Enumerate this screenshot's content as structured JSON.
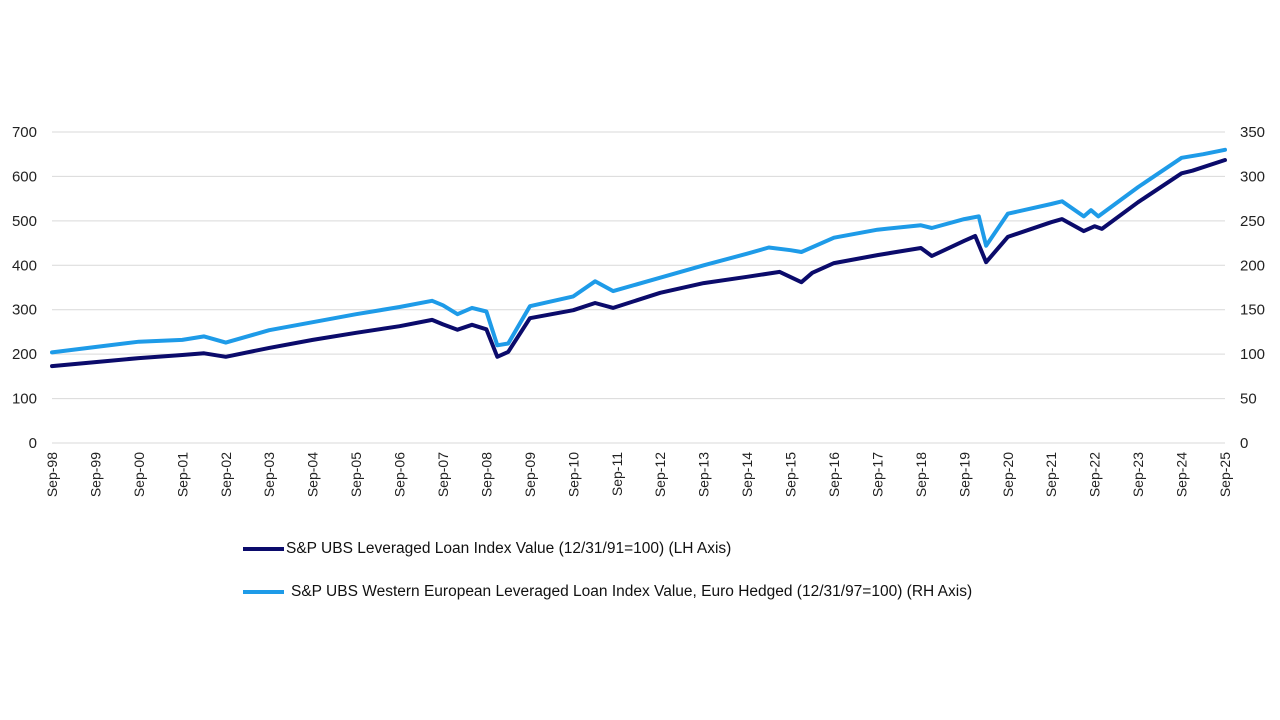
{
  "chart_data": {
    "type": "line",
    "title": "",
    "xlabel": "",
    "ylabel": "",
    "y2label": "",
    "grid": true,
    "legend_position": "bottom",
    "ylim": [
      0,
      700
    ],
    "y2lim": [
      0,
      350
    ],
    "yticks": [
      "0",
      "100",
      "200",
      "300",
      "400",
      "500",
      "600",
      "700"
    ],
    "y2ticks": [
      "0",
      "50",
      "100",
      "150",
      "200",
      "250",
      "300",
      "350"
    ],
    "xticks": [
      "Sep-98",
      "Sep-99",
      "Sep-00",
      "Sep-01",
      "Sep-02",
      "Sep-03",
      "Sep-04",
      "Sep-05",
      "Sep-06",
      "Sep-07",
      "Sep-08",
      "Sep-09",
      "Sep-10",
      "Sep-11",
      "Sep-12",
      "Sep-13",
      "Sep-14",
      "Sep-15",
      "Sep-16",
      "Sep-17",
      "Sep-18",
      "Sep-19",
      "Sep-20",
      "Sep-21",
      "Sep-22",
      "Sep-23",
      "Sep-24",
      "Sep-25"
    ],
    "xrange": [
      "1998-09",
      "2025-09"
    ],
    "series": [
      {
        "name": "S&P UBS Leveraged Loan Index Value (12/31/91=100) (LH Axis)",
        "axis": "left",
        "color": "#0b0b6b",
        "points": [
          [
            "1998-09",
            173
          ],
          [
            "1999-09",
            182
          ],
          [
            "2000-09",
            191
          ],
          [
            "2001-09",
            198
          ],
          [
            "2002-03",
            202
          ],
          [
            "2002-09",
            194
          ],
          [
            "2003-09",
            214
          ],
          [
            "2004-09",
            232
          ],
          [
            "2005-09",
            248
          ],
          [
            "2006-09",
            263
          ],
          [
            "2007-06",
            277
          ],
          [
            "2007-09",
            267
          ],
          [
            "2008-01",
            255
          ],
          [
            "2008-05",
            266
          ],
          [
            "2008-09",
            256
          ],
          [
            "2008-12",
            194
          ],
          [
            "2009-03",
            205
          ],
          [
            "2009-09",
            281
          ],
          [
            "2010-09",
            299
          ],
          [
            "2011-03",
            315
          ],
          [
            "2011-08",
            304
          ],
          [
            "2012-09",
            338
          ],
          [
            "2013-09",
            360
          ],
          [
            "2014-09",
            374
          ],
          [
            "2015-06",
            385
          ],
          [
            "2015-12",
            362
          ],
          [
            "2016-03",
            383
          ],
          [
            "2016-09",
            405
          ],
          [
            "2017-09",
            423
          ],
          [
            "2018-09",
            439
          ],
          [
            "2018-12",
            421
          ],
          [
            "2019-09",
            455
          ],
          [
            "2019-12",
            466
          ],
          [
            "2020-03",
            407
          ],
          [
            "2020-09",
            464
          ],
          [
            "2021-09",
            497
          ],
          [
            "2021-12",
            504
          ],
          [
            "2022-06",
            477
          ],
          [
            "2022-09",
            488
          ],
          [
            "2022-11",
            482
          ],
          [
            "2023-09",
            542
          ],
          [
            "2024-09",
            607
          ],
          [
            "2024-12",
            613
          ],
          [
            "2025-09",
            637
          ]
        ]
      },
      {
        "name": "S&P UBS Western European Leveraged Loan Index Value, Euro Hedged (12/31/97=100) (RH Axis)",
        "axis": "right",
        "color": "#1e9be8",
        "points": [
          [
            "1998-09",
            102
          ],
          [
            "1999-09",
            108
          ],
          [
            "2000-09",
            114
          ],
          [
            "2001-09",
            116
          ],
          [
            "2002-03",
            120
          ],
          [
            "2002-09",
            113
          ],
          [
            "2003-09",
            127
          ],
          [
            "2004-09",
            136
          ],
          [
            "2005-09",
            145
          ],
          [
            "2006-09",
            153
          ],
          [
            "2007-06",
            160
          ],
          [
            "2007-09",
            155
          ],
          [
            "2008-01",
            145
          ],
          [
            "2008-05",
            152
          ],
          [
            "2008-09",
            148
          ],
          [
            "2008-12",
            110
          ],
          [
            "2009-03",
            112
          ],
          [
            "2009-09",
            154
          ],
          [
            "2010-09",
            165
          ],
          [
            "2011-03",
            182
          ],
          [
            "2011-08",
            171
          ],
          [
            "2012-09",
            186
          ],
          [
            "2013-09",
            200
          ],
          [
            "2014-09",
            213
          ],
          [
            "2015-03",
            220
          ],
          [
            "2015-09",
            217
          ],
          [
            "2015-12",
            215
          ],
          [
            "2016-09",
            231
          ],
          [
            "2017-09",
            240
          ],
          [
            "2018-09",
            245
          ],
          [
            "2018-12",
            242
          ],
          [
            "2019-09",
            252
          ],
          [
            "2020-01",
            255
          ],
          [
            "2020-03",
            222
          ],
          [
            "2020-09",
            258
          ],
          [
            "2021-09",
            269
          ],
          [
            "2021-12",
            272
          ],
          [
            "2022-06",
            255
          ],
          [
            "2022-08",
            262
          ],
          [
            "2022-10",
            255
          ],
          [
            "2023-09",
            288
          ],
          [
            "2024-09",
            321
          ],
          [
            "2025-03",
            325
          ],
          [
            "2025-09",
            330
          ]
        ]
      }
    ]
  }
}
